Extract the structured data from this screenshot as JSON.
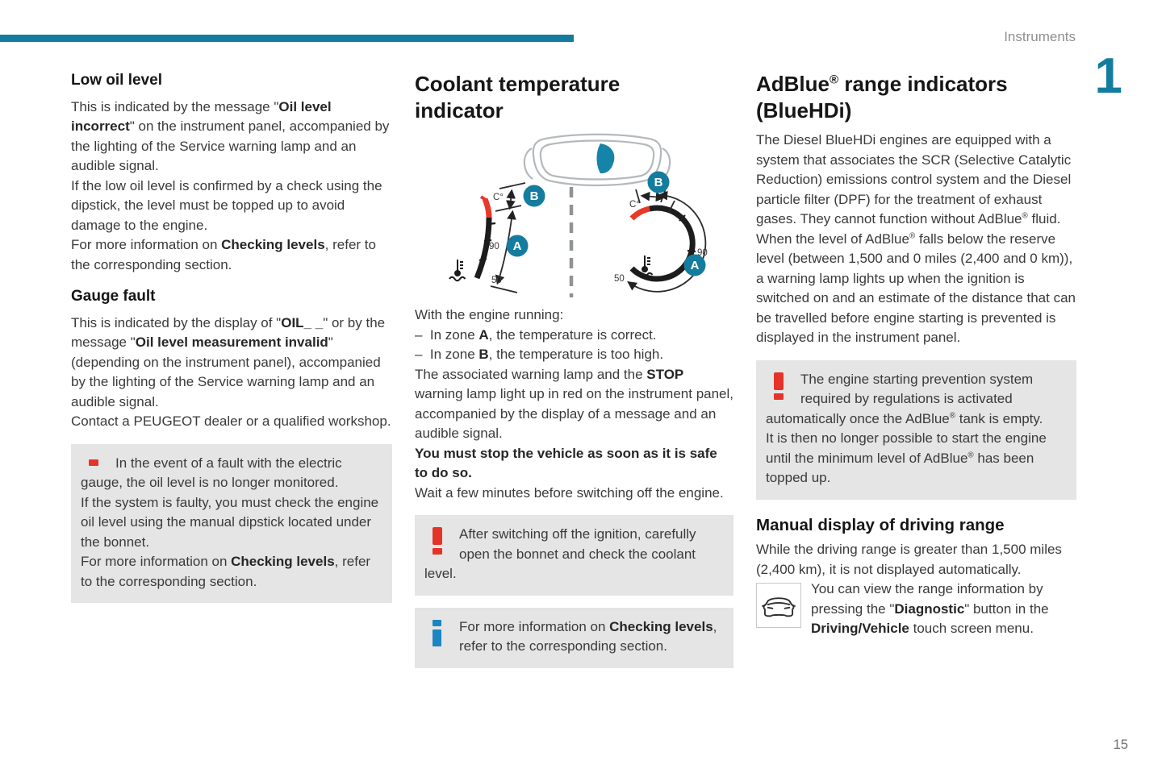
{
  "header": {
    "section_label": "Instruments",
    "chapter_number": "1",
    "page_number": "15"
  },
  "colors": {
    "accent_teal": "#147c9e",
    "warning_red": "#e6332a",
    "info_blue": "#1b86c3",
    "gauge_red": "#e8382a",
    "box_gray": "#e5e5e5"
  },
  "col1": {
    "h_low_oil": "Low oil level",
    "low_oil_p": [
      [
        {
          "t": "This is indicated by the message \""
        },
        {
          "t": "Oil level incorrect",
          "b": true
        },
        {
          "t": "\" on the instrument panel, accompanied by the lighting of the Service warning lamp and an audible signal."
        }
      ],
      [
        {
          "t": "If the low oil level is confirmed by a check using the dipstick, the level must be topped up to avoid damage to the engine."
        }
      ],
      [
        {
          "t": "For more information on "
        },
        {
          "t": "Checking levels",
          "b": true
        },
        {
          "t": ", refer to the corresponding section."
        }
      ]
    ],
    "h_gauge_fault": "Gauge fault",
    "gauge_fault_p": [
      [
        {
          "t": "This is indicated by the display of \""
        },
        {
          "t": "OIL_ _",
          "b": true
        },
        {
          "t": "\" or by the message \""
        },
        {
          "t": "Oil level measurement invalid",
          "b": true
        },
        {
          "t": "\" (depending on the instrument panel), accompanied by the lighting of the Service warning lamp and an audible signal."
        }
      ],
      [
        {
          "t": "Contact a PEUGEOT dealer or a qualified workshop."
        }
      ]
    ],
    "warning_box_p": [
      [
        {
          "t": "In the event of a fault with the electric gauge, the oil level is no longer monitored."
        }
      ],
      [
        {
          "t": "If the system is faulty, you must check the engine oil level using the manual dipstick located under the bonnet."
        }
      ],
      [
        {
          "t": "For more information on "
        },
        {
          "t": "Checking levels",
          "b": true
        },
        {
          "t": ", refer to the corresponding section."
        }
      ]
    ]
  },
  "col2": {
    "heading": "Coolant temperature indicator",
    "diagram": {
      "left": {
        "c": "C°",
        "b": "B",
        "a": "A",
        "deg90": "90",
        "deg50": "50"
      },
      "right": {
        "c": "C°",
        "b": "B",
        "a": "A",
        "deg90": "90",
        "deg50": "50"
      }
    },
    "body_p": [
      [
        {
          "t": "With the engine running:"
        }
      ],
      [
        {
          "t": "–  In zone "
        },
        {
          "t": "A",
          "b": true
        },
        {
          "t": ", the temperature is correct."
        }
      ],
      [
        {
          "t": "–  In zone "
        },
        {
          "t": "B",
          "b": true
        },
        {
          "t": ", the temperature is too high."
        }
      ],
      [
        {
          "t": "The associated warning lamp and the "
        },
        {
          "t": "STOP",
          "b": true
        },
        {
          "t": " warning lamp light up in red on the instrument panel, accompanied by the display of a message and an audible signal."
        }
      ],
      [
        {
          "t": "You must stop the vehicle as soon as it is safe to do so.",
          "b": true
        }
      ],
      [
        {
          "t": "Wait a few minutes before switching off the engine."
        }
      ]
    ],
    "warning_box_p": [
      [
        {
          "t": "After switching off the ignition, carefully open the bonnet and check the coolant level."
        }
      ]
    ],
    "info_box_p": [
      [
        {
          "t": "For more information on "
        },
        {
          "t": "Checking levels",
          "b": true
        },
        {
          "t": ", refer to the corresponding section."
        }
      ]
    ]
  },
  "col3": {
    "heading_rich": [
      {
        "t": "AdBlue"
      },
      {
        "t": "®",
        "sup": true
      },
      {
        "t": " range indicators (BlueHDi)"
      }
    ],
    "intro_p": [
      [
        {
          "t": "The Diesel BlueHDi engines are equipped with a system that associates the SCR (Selective Catalytic Reduction) emissions control system and the Diesel particle filter (DPF) for the treatment of exhaust gases. They cannot function without AdBlue"
        },
        {
          "t": "®",
          "sup": true
        },
        {
          "t": " fluid."
        }
      ],
      [
        {
          "t": "When the level of AdBlue"
        },
        {
          "t": "®",
          "sup": true
        },
        {
          "t": " falls below the reserve level (between 1,500 and 0 miles (2,400 and 0 km)), a warning lamp lights up when the ignition is switched on and an estimate of the distance that can be travelled before engine starting is prevented is displayed in the instrument panel."
        }
      ]
    ],
    "warning_box_p": [
      [
        {
          "t": "The engine starting prevention system required by regulations is activated automatically once the AdBlue"
        },
        {
          "t": "®",
          "sup": true
        },
        {
          "t": " tank is empty."
        }
      ],
      [
        {
          "t": "It is then no longer possible to start the engine until the minimum level of AdBlue"
        },
        {
          "t": "®",
          "sup": true
        },
        {
          "t": " has been topped up."
        }
      ]
    ],
    "h_manual": "Manual display of driving range",
    "manual_p": [
      [
        {
          "t": "While the driving range is greater than 1,500 miles (2,400 km), it is not displayed automatically."
        }
      ]
    ],
    "diag_p": [
      [
        {
          "t": "You can view the range information by pressing the \""
        },
        {
          "t": "Diagnostic",
          "b": true
        },
        {
          "t": "\" button in the "
        },
        {
          "t": "Driving/Vehicle",
          "b": true
        },
        {
          "t": " touch screen menu."
        }
      ]
    ]
  }
}
